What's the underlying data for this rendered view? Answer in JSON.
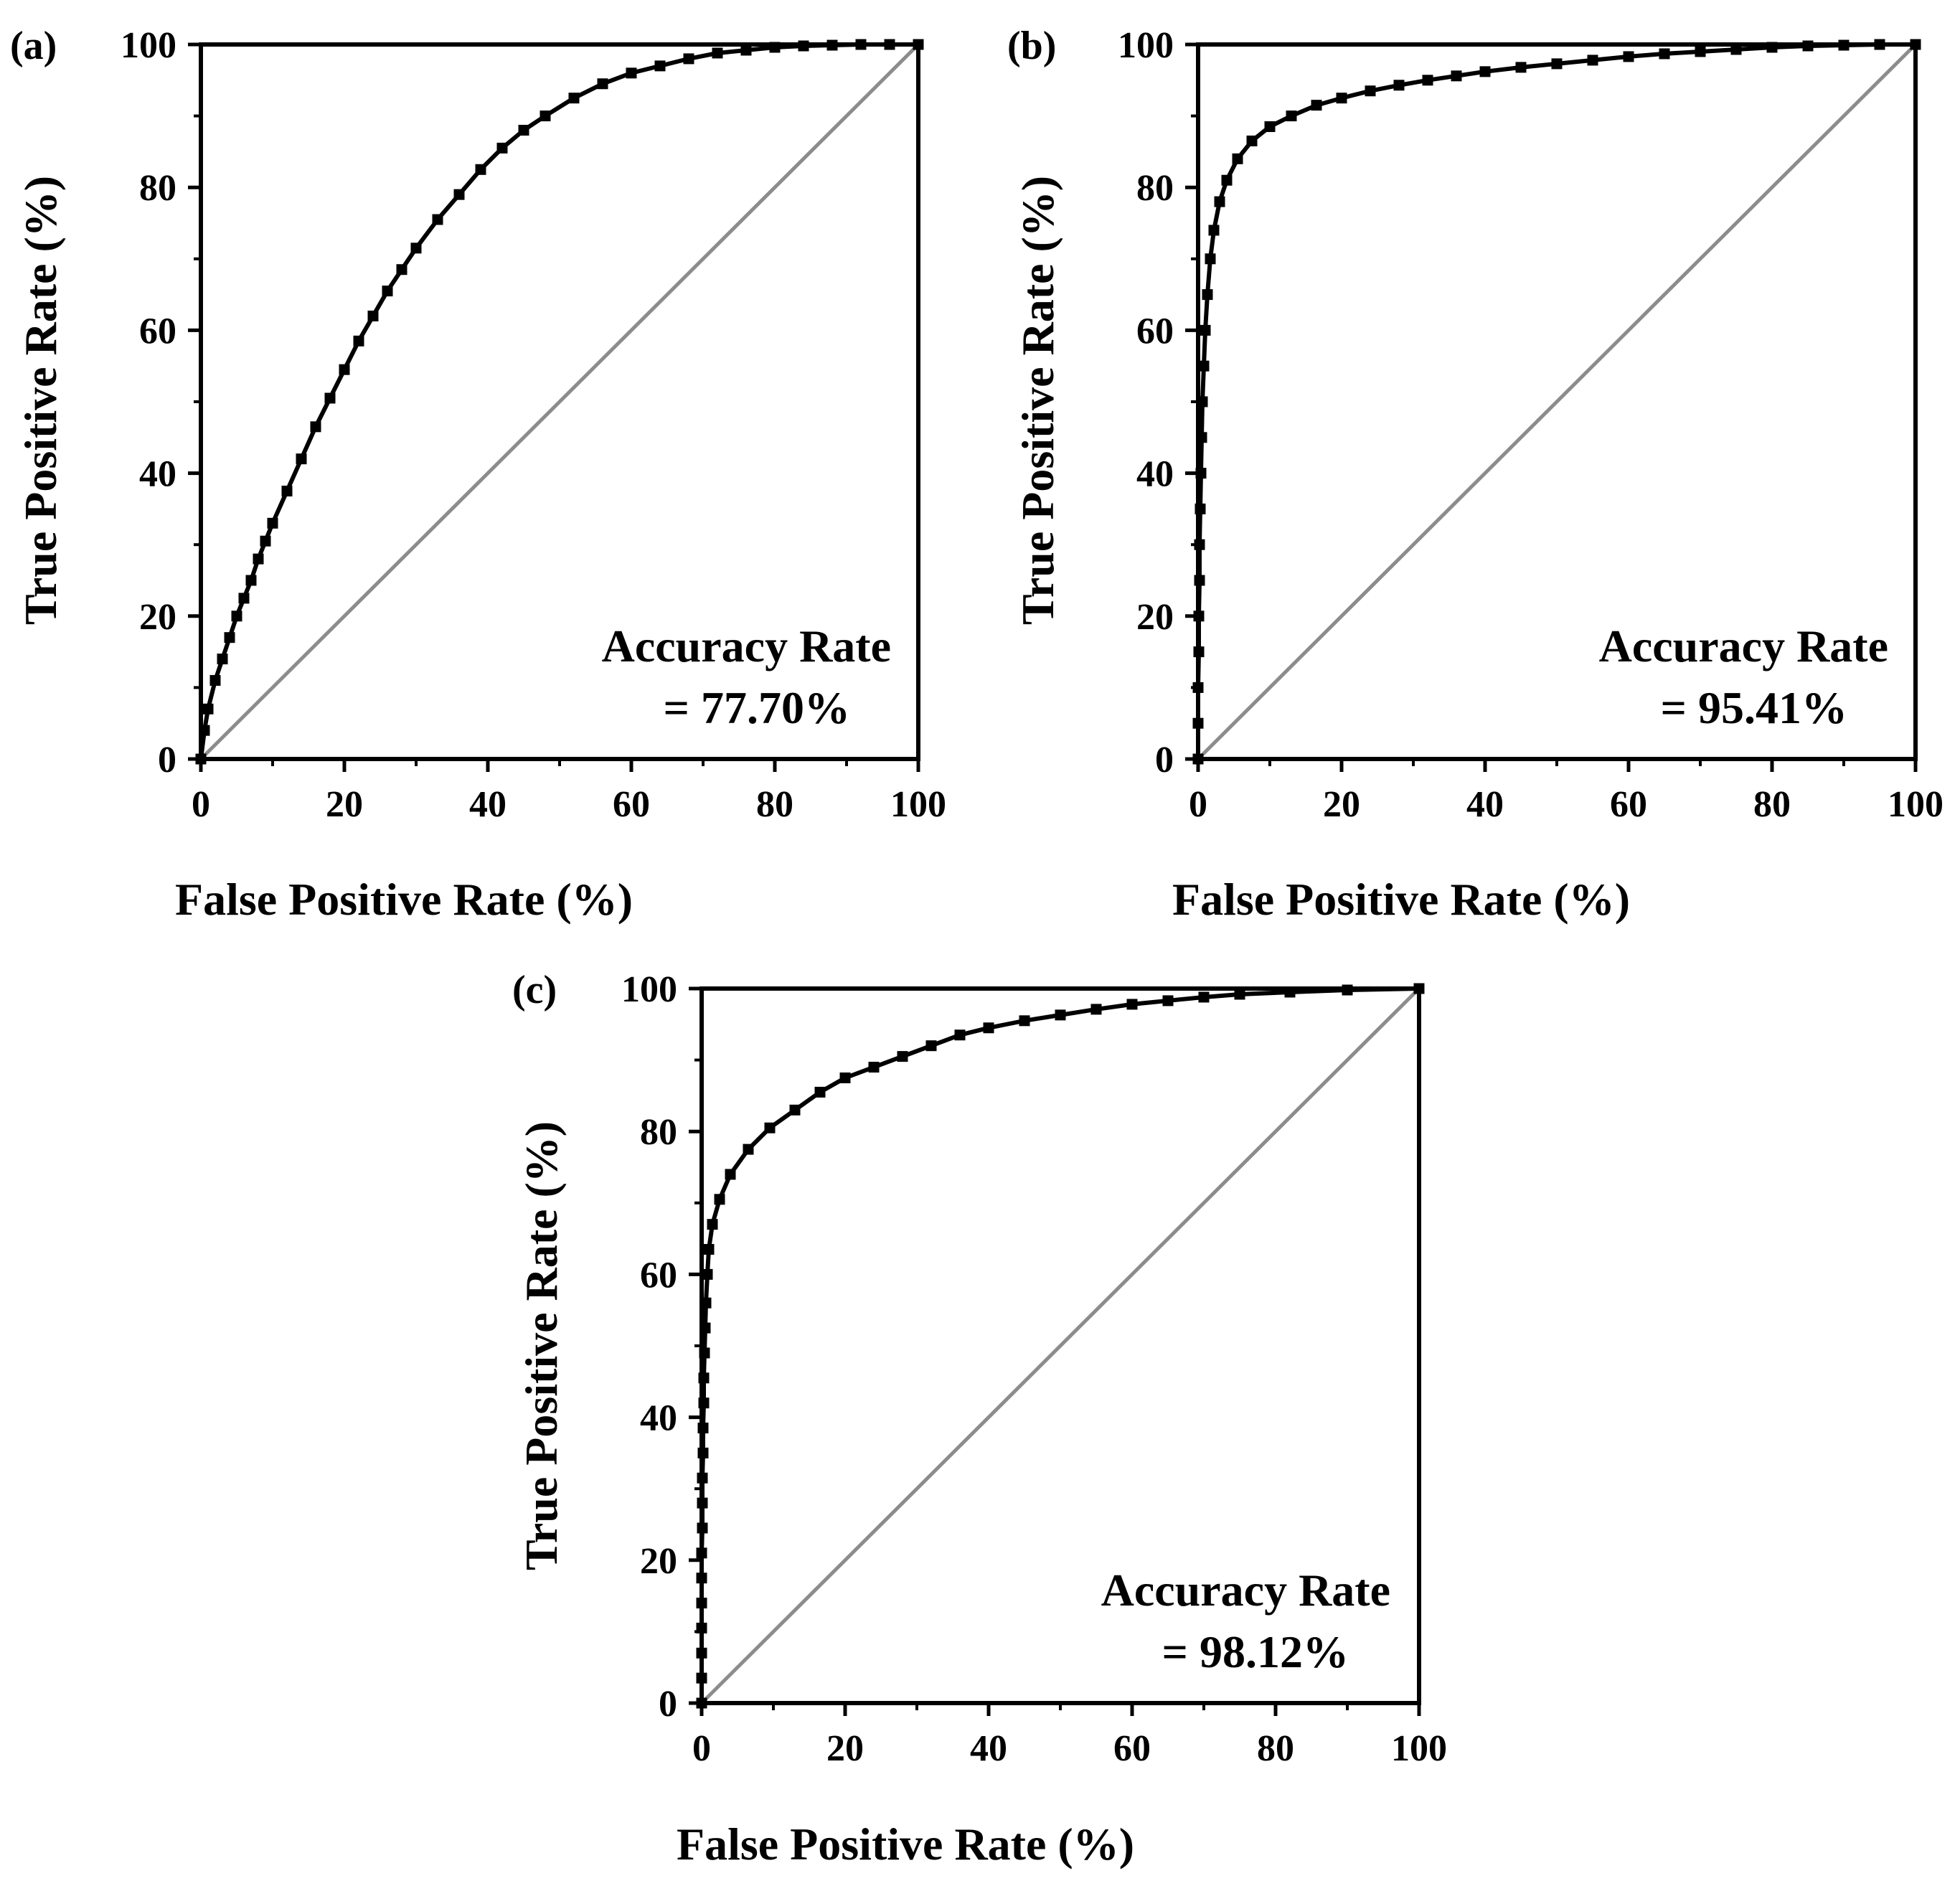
{
  "figure": {
    "line_color": "#000000",
    "diagonal_color": "#8c8c8c",
    "background": "#ffffff"
  },
  "chart_data": [
    {
      "type": "line",
      "panel": "(a)",
      "xlabel": "False Positive Rate (%)",
      "ylabel": "True Positive Rate (%)",
      "xlim": [
        0,
        100
      ],
      "ylim": [
        0,
        100
      ],
      "xticks": [
        "0",
        "20",
        "40",
        "60",
        "80",
        "100"
      ],
      "yticks": [
        "0",
        "20",
        "40",
        "60",
        "80",
        "100"
      ],
      "accuracy_label": "Accuracy  Rate",
      "accuracy_value": "=  77.70%",
      "series": [
        {
          "name": "ROC",
          "marker": "square",
          "x": [
            0,
            0.5,
            1,
            2,
            3,
            4,
            5,
            6,
            7,
            8,
            9,
            10,
            12,
            14,
            16,
            18,
            20,
            22,
            24,
            26,
            28,
            30,
            33,
            36,
            39,
            42,
            45,
            48,
            52,
            56,
            60,
            64,
            68,
            72,
            76,
            80,
            84,
            88,
            92,
            96,
            100
          ],
          "y": [
            0,
            4,
            7,
            11,
            14,
            17,
            20,
            22.5,
            25,
            28,
            30.5,
            33,
            37.5,
            42,
            46.5,
            50.5,
            54.5,
            58.5,
            62,
            65.5,
            68.5,
            71.5,
            75.5,
            79,
            82.5,
            85.5,
            88,
            90,
            92.5,
            94.5,
            96,
            97,
            98,
            98.8,
            99.2,
            99.6,
            99.8,
            99.9,
            100,
            100,
            100
          ]
        },
        {
          "name": "Random",
          "x": [
            0,
            100
          ],
          "y": [
            0,
            100
          ]
        }
      ]
    },
    {
      "type": "line",
      "panel": "(b)",
      "xlabel": "False Positive Rate (%)",
      "ylabel": "True Positive Rate (%)",
      "xlim": [
        0,
        100
      ],
      "ylim": [
        0,
        100
      ],
      "xticks": [
        "0",
        "20",
        "40",
        "60",
        "80",
        "100"
      ],
      "yticks": [
        "0",
        "20",
        "40",
        "60",
        "80",
        "100"
      ],
      "accuracy_label": "Accuracy  Rate",
      "accuracy_value": "=  95.41%",
      "series": [
        {
          "name": "ROC",
          "marker": "square",
          "x": [
            0,
            0,
            0,
            0.1,
            0.1,
            0.2,
            0.2,
            0.3,
            0.4,
            0.5,
            0.6,
            0.8,
            1,
            1.3,
            1.7,
            2.2,
            3,
            4,
            5.5,
            7.5,
            10,
            13,
            16.5,
            20,
            24,
            28,
            32,
            36,
            40,
            45,
            50,
            55,
            60,
            65,
            70,
            75,
            80,
            85,
            90,
            95,
            100
          ],
          "y": [
            0,
            5,
            10,
            15,
            20,
            25,
            30,
            35,
            40,
            45,
            50,
            55,
            60,
            65,
            70,
            74,
            78,
            81,
            84,
            86.5,
            88.5,
            90,
            91.5,
            92.5,
            93.5,
            94.3,
            95,
            95.6,
            96.2,
            96.8,
            97.3,
            97.8,
            98.3,
            98.7,
            99,
            99.3,
            99.6,
            99.8,
            99.9,
            100,
            100
          ]
        },
        {
          "name": "Random",
          "x": [
            0,
            100
          ],
          "y": [
            0,
            100
          ]
        }
      ]
    },
    {
      "type": "line",
      "panel": "(c)",
      "xlabel": "False Positive Rate (%)",
      "ylabel": "True Positive Rate (%)",
      "xlim": [
        0,
        100
      ],
      "ylim": [
        0,
        100
      ],
      "xticks": [
        "0",
        "20",
        "40",
        "60",
        "80",
        "100"
      ],
      "yticks": [
        "0",
        "20",
        "40",
        "60",
        "80",
        "100"
      ],
      "accuracy_label": "Accuracy  Rate",
      "accuracy_value": "=  98.12%",
      "series": [
        {
          "name": "ROC",
          "marker": "square",
          "x": [
            0,
            0,
            0,
            0,
            0,
            0,
            0,
            0.1,
            0.1,
            0.1,
            0.2,
            0.2,
            0.3,
            0.3,
            0.4,
            0.5,
            0.6,
            0.8,
            1,
            1.5,
            2.5,
            4,
            6.5,
            9.5,
            13,
            16.5,
            20,
            24,
            28,
            32,
            36,
            40,
            45,
            50,
            55,
            60,
            65,
            70,
            75,
            82,
            90,
            100
          ],
          "y": [
            0,
            3.5,
            7,
            10.5,
            14,
            17.5,
            21,
            24.5,
            28,
            31.5,
            35,
            38.5,
            42,
            45.5,
            49,
            52.5,
            56,
            60,
            63.5,
            67,
            70.5,
            74,
            77.5,
            80.5,
            83,
            85.5,
            87.5,
            89,
            90.5,
            92,
            93.5,
            94.5,
            95.5,
            96.3,
            97.1,
            97.8,
            98.3,
            98.8,
            99.2,
            99.5,
            99.8,
            100
          ]
        },
        {
          "name": "Random",
          "x": [
            0,
            100
          ],
          "y": [
            0,
            100
          ]
        }
      ]
    }
  ]
}
